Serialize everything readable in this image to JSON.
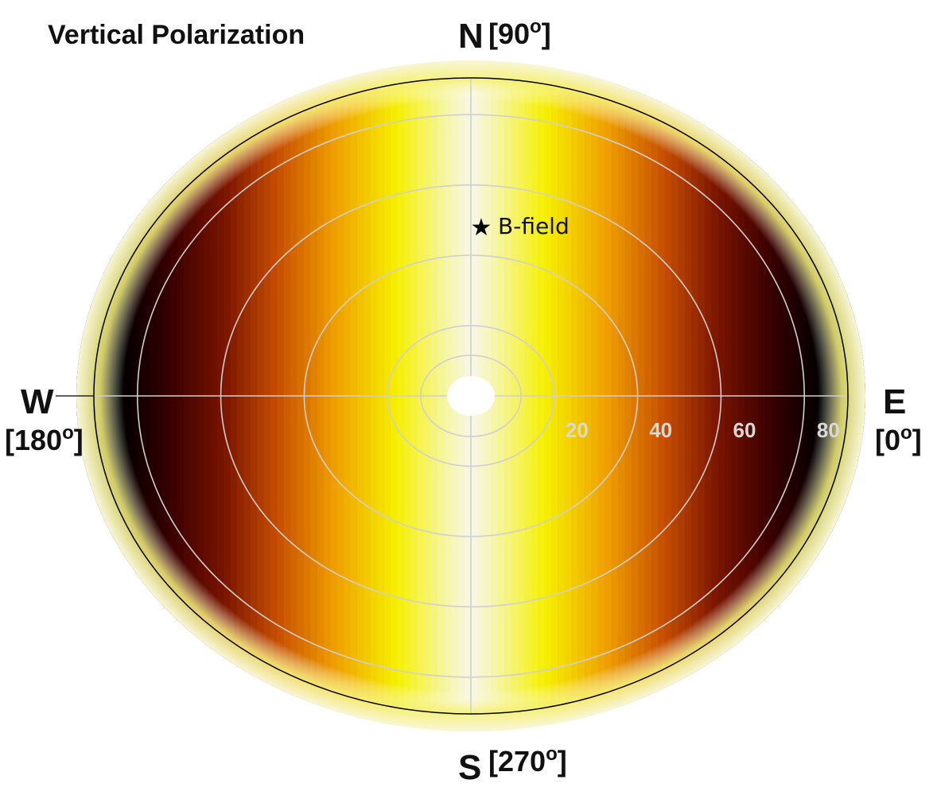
{
  "chart_data": {
    "type": "heatmap",
    "subtype": "polar",
    "title": "Vertical Polarization",
    "radial_ticks": [
      "20",
      "40",
      "60",
      "80"
    ],
    "radial_tick_values": [
      20,
      40,
      60,
      80
    ],
    "radial_range": [
      0,
      90
    ],
    "grid": true,
    "colormap": "hot",
    "color_stops": [
      "#000000",
      "#3a0000",
      "#7a1400",
      "#c85000",
      "#f0a000",
      "#f5f000",
      "#f7f7e6"
    ],
    "directions": {
      "north": {
        "letter": "N",
        "angle": "[90",
        "deg": "o",
        "close": "]"
      },
      "south": {
        "letter": "S",
        "angle": "[270",
        "deg": "o",
        "close": "]"
      },
      "east": {
        "letter": "E",
        "angle": "[0",
        "deg": "o",
        "close": "]"
      },
      "west": {
        "letter": "W",
        "angle": "[180",
        "deg": "o",
        "close": "]"
      }
    },
    "marker": {
      "symbol": "★",
      "label": "B-field",
      "azimuth_deg": 90,
      "zenith_deg": 55
    }
  }
}
